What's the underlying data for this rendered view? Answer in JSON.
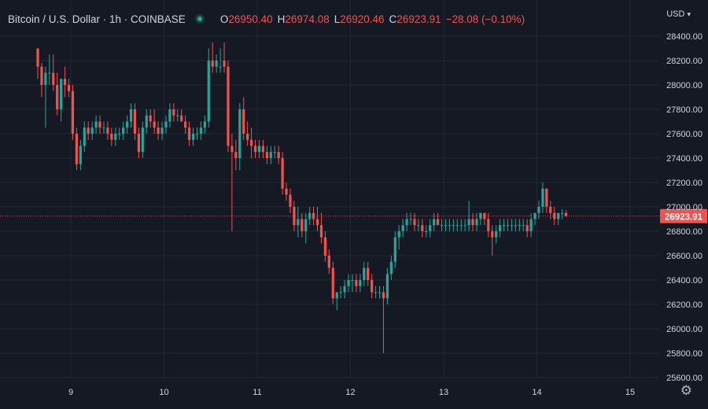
{
  "header": {
    "title": "Bitcoin / U.S. Dollar · 1h · COINBASE",
    "ohlc": {
      "o_label": "O",
      "o_value": "26950.40",
      "h_label": "H",
      "h_value": "26974.08",
      "l_label": "L",
      "l_value": "26920.46",
      "c_label": "C",
      "c_value": "26923.91",
      "change": "−28.08 (−0.10%)"
    },
    "currency": "USD"
  },
  "icons": {
    "status": "status-dot-icon",
    "currency_menu": "chevron-down-icon",
    "settings": "gear-icon"
  },
  "colors": {
    "up": "#26a69a",
    "down": "#ef5350",
    "background": "#151924",
    "grid": "#232733",
    "text": "#d1d4dc"
  },
  "chart_data": {
    "type": "candlestick",
    "instrument": "Bitcoin / U.S. Dollar",
    "interval": "1h",
    "exchange": "COINBASE",
    "ylim": [
      25500,
      28500
    ],
    "yticks": [
      "28400.00",
      "28200.00",
      "28000.00",
      "27800.00",
      "27600.00",
      "27400.00",
      "27200.00",
      "27000.00",
      "26800.00",
      "26600.00",
      "26400.00",
      "26200.00",
      "26000.00",
      "25800.00",
      "25600.00"
    ],
    "x_start_hours_before_day9": 9,
    "xtick_labels": [
      "9",
      "10",
      "11",
      "12",
      "13",
      "14",
      "15"
    ],
    "last_price": 26923.91,
    "last_price_label": "26923.91",
    "candles": [
      [
        28300,
        28300,
        28050,
        28150
      ],
      [
        28150,
        28180,
        27900,
        28000
      ],
      [
        28000,
        28150,
        27650,
        28100
      ],
      [
        28100,
        28250,
        28000,
        28100
      ],
      [
        28100,
        28250,
        27950,
        28000
      ],
      [
        28000,
        28100,
        27750,
        27800
      ],
      [
        27800,
        28050,
        27700,
        28050
      ],
      [
        28050,
        28150,
        27900,
        28000
      ],
      [
        28000,
        28050,
        27900,
        27950
      ],
      [
        27950,
        28000,
        27550,
        27600
      ],
      [
        27600,
        27650,
        27300,
        27350
      ],
      [
        27350,
        27550,
        27300,
        27500
      ],
      [
        27500,
        27700,
        27450,
        27650
      ],
      [
        27650,
        27700,
        27550,
        27600
      ],
      [
        27600,
        27700,
        27550,
        27650
      ],
      [
        27650,
        27750,
        27600,
        27700
      ],
      [
        27700,
        27750,
        27600,
        27650
      ],
      [
        27650,
        27700,
        27600,
        27650
      ],
      [
        27650,
        27700,
        27550,
        27600
      ],
      [
        27600,
        27650,
        27500,
        27550
      ],
      [
        27550,
        27650,
        27500,
        27600
      ],
      [
        27600,
        27650,
        27550,
        27600
      ],
      [
        27600,
        27700,
        27550,
        27650
      ],
      [
        27650,
        27750,
        27600,
        27700
      ],
      [
        27700,
        27850,
        27650,
        27800
      ],
      [
        27800,
        27850,
        27550,
        27600
      ],
      [
        27600,
        27650,
        27400,
        27450
      ],
      [
        27450,
        27700,
        27400,
        27650
      ],
      [
        27650,
        27800,
        27600,
        27750
      ],
      [
        27750,
        27800,
        27650,
        27700
      ],
      [
        27700,
        27800,
        27600,
        27650
      ],
      [
        27650,
        27700,
        27550,
        27600
      ],
      [
        27600,
        27700,
        27550,
        27650
      ],
      [
        27650,
        27750,
        27600,
        27700
      ],
      [
        27700,
        27850,
        27650,
        27800
      ],
      [
        27800,
        27850,
        27700,
        27750
      ],
      [
        27750,
        27800,
        27700,
        27750
      ],
      [
        27750,
        27800,
        27700,
        27700
      ],
      [
        27700,
        27750,
        27600,
        27650
      ],
      [
        27650,
        27700,
        27500,
        27550
      ],
      [
        27550,
        27650,
        27500,
        27600
      ],
      [
        27600,
        27650,
        27550,
        27600
      ],
      [
        27600,
        27700,
        27550,
        27650
      ],
      [
        27650,
        27750,
        27600,
        27700
      ],
      [
        27700,
        28300,
        27650,
        28200
      ],
      [
        28200,
        28350,
        28100,
        28150
      ],
      [
        28150,
        28250,
        28100,
        28200
      ],
      [
        28150,
        28300,
        28100,
        28150
      ],
      [
        28200,
        28350,
        28100,
        28150
      ],
      [
        28150,
        28200,
        27450,
        27500
      ],
      [
        27500,
        27600,
        26800,
        27450
      ],
      [
        27450,
        27550,
        27300,
        27400
      ],
      [
        27400,
        27850,
        27300,
        27800
      ],
      [
        27800,
        27900,
        27550,
        27600
      ],
      [
        27600,
        27700,
        27500,
        27550
      ],
      [
        27550,
        27650,
        27400,
        27500
      ],
      [
        27500,
        27550,
        27400,
        27450
      ],
      [
        27450,
        27550,
        27400,
        27500
      ],
      [
        27500,
        27550,
        27400,
        27450
      ],
      [
        27450,
        27500,
        27350,
        27400
      ],
      [
        27400,
        27500,
        27350,
        27450
      ],
      [
        27450,
        27500,
        27400,
        27450
      ],
      [
        27450,
        27500,
        27350,
        27400
      ],
      [
        27400,
        27450,
        27100,
        27150
      ],
      [
        27150,
        27200,
        27050,
        27100
      ],
      [
        27100,
        27150,
        26950,
        27000
      ],
      [
        27000,
        27050,
        26800,
        26850
      ],
      [
        26850,
        27000,
        26750,
        26900
      ],
      [
        26900,
        26950,
        26750,
        26800
      ],
      [
        26800,
        26950,
        26700,
        26900
      ],
      [
        26900,
        27000,
        26850,
        26950
      ],
      [
        26950,
        27000,
        26850,
        26900
      ],
      [
        26900,
        27000,
        26800,
        26850
      ],
      [
        26850,
        26950,
        26700,
        26750
      ],
      [
        26750,
        26800,
        26550,
        26600
      ],
      [
        26600,
        26650,
        26450,
        26500
      ],
      [
        26500,
        26550,
        26200,
        26250
      ],
      [
        26250,
        26300,
        26150,
        26300
      ],
      [
        26300,
        26350,
        26250,
        26300
      ],
      [
        26300,
        26400,
        26250,
        26350
      ],
      [
        26350,
        26450,
        26300,
        26400
      ],
      [
        26400,
        26450,
        26300,
        26400
      ],
      [
        26400,
        26450,
        26300,
        26350
      ],
      [
        26350,
        26450,
        26300,
        26400
      ],
      [
        26400,
        26550,
        26350,
        26500
      ],
      [
        26500,
        26550,
        26350,
        26400
      ],
      [
        26400,
        26450,
        26250,
        26300
      ],
      [
        26300,
        26350,
        26250,
        26300
      ],
      [
        26300,
        26350,
        26250,
        26300
      ],
      [
        26300,
        26350,
        25800,
        26250
      ],
      [
        26250,
        26500,
        26200,
        26450
      ],
      [
        26450,
        26600,
        26400,
        26550
      ],
      [
        26550,
        26800,
        26500,
        26750
      ],
      [
        26750,
        26850,
        26650,
        26800
      ],
      [
        26800,
        26900,
        26750,
        26850
      ],
      [
        26850,
        26950,
        26800,
        26900
      ],
      [
        26900,
        26950,
        26850,
        26900
      ],
      [
        26900,
        26950,
        26800,
        26850
      ],
      [
        26850,
        26900,
        26800,
        26850
      ],
      [
        26850,
        26900,
        26750,
        26800
      ],
      [
        26800,
        26850,
        26750,
        26800
      ],
      [
        26800,
        26900,
        26750,
        26850
      ],
      [
        26850,
        26950,
        26800,
        26900
      ],
      [
        26900,
        26950,
        26850,
        26850
      ],
      [
        26850,
        26900,
        26800,
        26850
      ],
      [
        26850,
        26900,
        26800,
        26850
      ],
      [
        26850,
        26900,
        26800,
        26850
      ],
      [
        26850,
        26900,
        26800,
        26850
      ],
      [
        26850,
        26900,
        26800,
        26850
      ],
      [
        26850,
        26900,
        26800,
        26850
      ],
      [
        26850,
        26900,
        26800,
        26850
      ],
      [
        26850,
        27050,
        26800,
        26900
      ],
      [
        26900,
        26950,
        26800,
        26850
      ],
      [
        26850,
        26950,
        26800,
        26900
      ],
      [
        26900,
        26950,
        26850,
        26950
      ],
      [
        26950,
        26950,
        26850,
        26900
      ],
      [
        26900,
        26950,
        26750,
        26800
      ],
      [
        26800,
        26850,
        26600,
        26750
      ],
      [
        26750,
        26850,
        26700,
        26800
      ],
      [
        26800,
        26900,
        26750,
        26850
      ],
      [
        26850,
        26900,
        26800,
        26850
      ],
      [
        26850,
        26900,
        26800,
        26850
      ],
      [
        26850,
        26900,
        26800,
        26850
      ],
      [
        26850,
        26900,
        26800,
        26850
      ],
      [
        26850,
        26900,
        26800,
        26850
      ],
      [
        26850,
        26900,
        26800,
        26850
      ],
      [
        26850,
        26900,
        26750,
        26800
      ],
      [
        26800,
        26950,
        26750,
        26900
      ],
      [
        26900,
        26950,
        26850,
        26950
      ],
      [
        26950,
        27050,
        26900,
        27000
      ],
      [
        27000,
        27200,
        26950,
        27150
      ],
      [
        27150,
        27150,
        26950,
        27000
      ],
      [
        27000,
        27050,
        26900,
        26950
      ],
      [
        26950,
        27000,
        26850,
        26900
      ],
      [
        26900,
        26950,
        26850,
        26950
      ],
      [
        26950,
        26980,
        26900,
        26950
      ],
      [
        26950,
        26974,
        26920,
        26924
      ]
    ]
  }
}
